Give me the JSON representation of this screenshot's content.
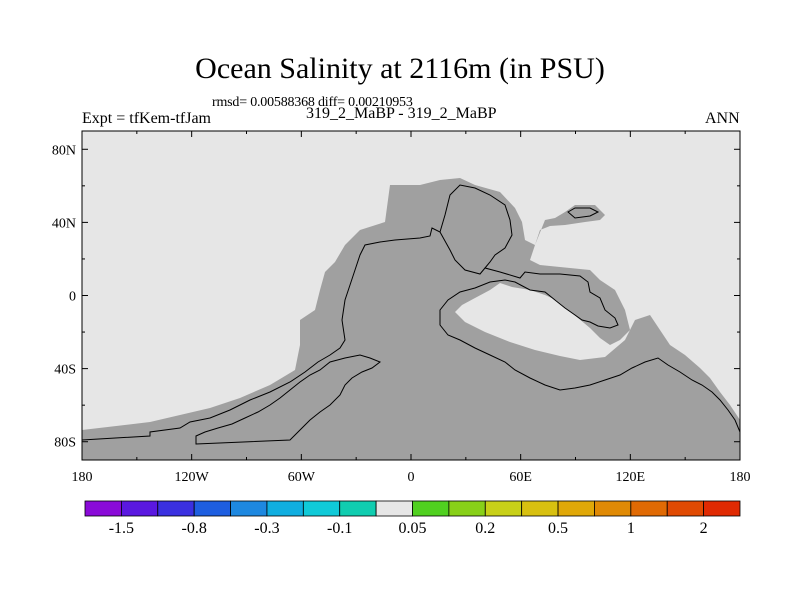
{
  "title": "Ocean Salinity at 2116m (in PSU)",
  "stats": "rmsd= 0.00588368 diff= 0.00210953",
  "expt": "Expt = tfKem-tfJam",
  "case": "319_2_MaBP - 319_2_MaBP",
  "season": "ANN",
  "colors": {
    "land": "#e6e6e6",
    "ocean_zero_bin": "#a0a0a0",
    "frame": "#000000"
  },
  "map": {
    "lon_range": [
      -180,
      180
    ],
    "lat_range": [
      -90,
      90
    ],
    "x_ticks": [
      {
        "lon": -180,
        "label": "180"
      },
      {
        "lon": -120,
        "label": "120W"
      },
      {
        "lon": -60,
        "label": "60W"
      },
      {
        "lon": 0,
        "label": "0"
      },
      {
        "lon": 60,
        "label": "60E"
      },
      {
        "lon": 120,
        "label": "120E"
      },
      {
        "lon": 180,
        "label": "180"
      }
    ],
    "y_ticks": [
      {
        "lat": 80,
        "label": "80N"
      },
      {
        "lat": 40,
        "label": "40N"
      },
      {
        "lat": 0,
        "label": "0"
      },
      {
        "lat": -40,
        "label": "40S"
      },
      {
        "lat": -80,
        "label": "80S"
      }
    ]
  },
  "colorbar": {
    "colors": [
      "#8a0ad8",
      "#5a18e0",
      "#3a30e0",
      "#1e5ee0",
      "#1e88e0",
      "#10aee0",
      "#10cad8",
      "#10cdb0",
      "#e6e6e6",
      "#50d020",
      "#88d018",
      "#c8d018",
      "#d8c010",
      "#e0a808",
      "#e08a05",
      "#e06a04",
      "#e04a03",
      "#e02a02"
    ],
    "labels": [
      {
        "after": 1,
        "text": "-1.5"
      },
      {
        "after": 3,
        "text": "-0.8"
      },
      {
        "after": 5,
        "text": "-0.3"
      },
      {
        "after": 7,
        "text": "-0.1"
      },
      {
        "after": 9,
        "text": "0.05"
      },
      {
        "after": 11,
        "text": "0.2"
      },
      {
        "after": 13,
        "text": "0.5"
      },
      {
        "after": 15,
        "text": "1"
      },
      {
        "after": 17,
        "text": "2"
      }
    ]
  }
}
